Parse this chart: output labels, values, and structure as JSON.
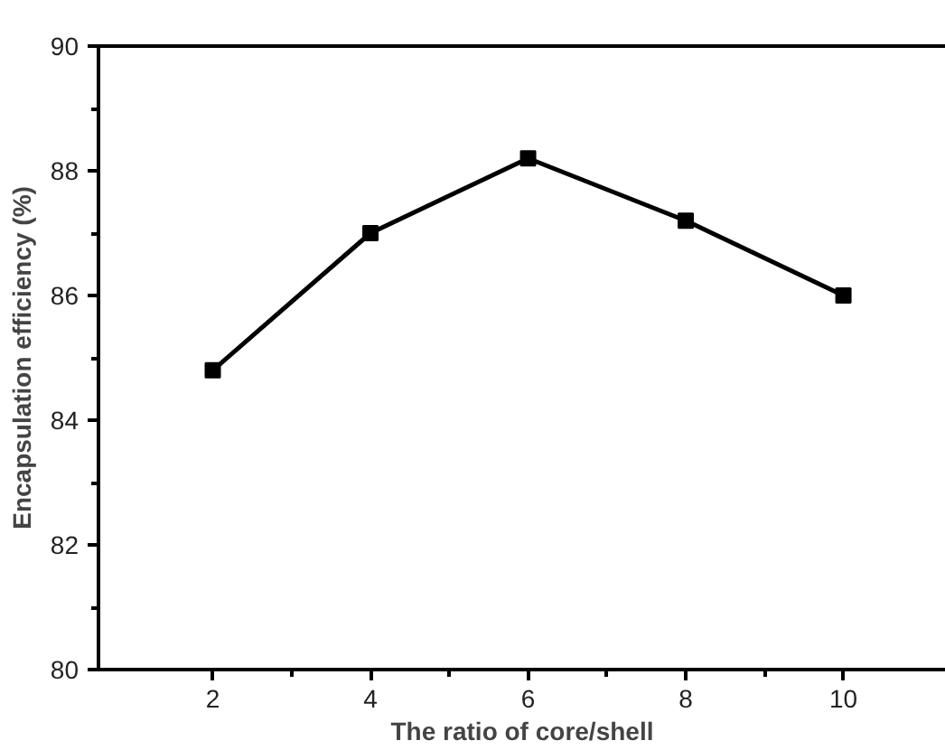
{
  "chart_data": {
    "type": "line",
    "xlabel": "The ratio of core/shell",
    "ylabel": "Encapsulation efficiency (%)",
    "x": [
      2,
      4,
      6,
      8,
      10
    ],
    "series": [
      {
        "color": "#000000",
        "values": [
          84.8,
          87.0,
          88.2,
          87.2,
          86.0
        ]
      }
    ],
    "xlim": [
      0.55,
      11.3
    ],
    "ylim": [
      80,
      90
    ],
    "xticks": [
      2,
      4,
      6,
      8,
      10
    ],
    "yticks": [
      80,
      82,
      84,
      86,
      88,
      90
    ],
    "marker": "square",
    "line_style": "solid",
    "grid": false
  }
}
